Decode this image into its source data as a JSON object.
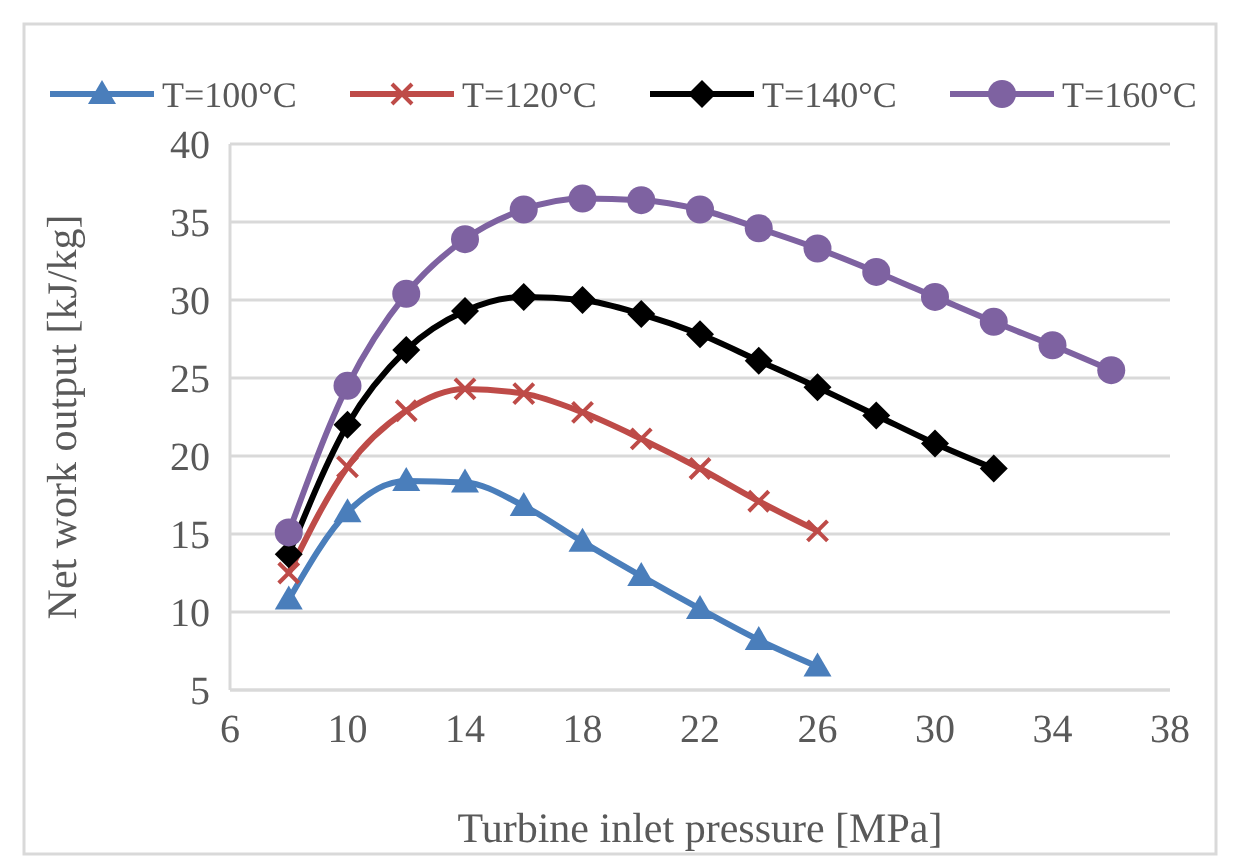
{
  "chart_data": {
    "type": "line",
    "xlabel": "Turbine inlet pressure [MPa]",
    "ylabel": "Net work output [kJ/kg]",
    "xlim": [
      6,
      38
    ],
    "xticks": [
      6,
      10,
      14,
      18,
      22,
      26,
      30,
      34,
      38
    ],
    "ylim": [
      5,
      40
    ],
    "yticks": [
      5,
      10,
      15,
      20,
      25,
      30,
      35,
      40
    ],
    "grid": "y",
    "legend": "top",
    "line_style": "solid",
    "series": [
      {
        "name": "T=100°C",
        "color": "#4a7ebb",
        "marker": "triangle",
        "x": [
          8,
          10,
          12,
          14,
          16,
          18,
          20,
          22,
          24,
          26
        ],
        "values": [
          10.8,
          16.4,
          18.4,
          18.3,
          16.8,
          14.5,
          12.3,
          10.2,
          8.2,
          6.5
        ]
      },
      {
        "name": "T=120°C",
        "color": "#be4b48",
        "marker": "cross",
        "x": [
          8,
          10,
          12,
          14,
          16,
          18,
          20,
          22,
          24,
          26
        ],
        "values": [
          12.5,
          19.3,
          22.9,
          24.3,
          24.0,
          22.8,
          21.1,
          19.2,
          17.1,
          15.2
        ]
      },
      {
        "name": "T=140°C",
        "color": "#000000",
        "marker": "diamond",
        "x": [
          8,
          10,
          12,
          14,
          16,
          18,
          20,
          22,
          24,
          26,
          28,
          30,
          32
        ],
        "values": [
          13.7,
          22.0,
          26.8,
          29.3,
          30.2,
          30.0,
          29.1,
          27.8,
          26.1,
          24.4,
          22.6,
          20.8,
          19.2
        ]
      },
      {
        "name": "T=160°C",
        "color": "#7e62a1",
        "marker": "circle",
        "x": [
          8,
          10,
          12,
          14,
          16,
          18,
          20,
          22,
          24,
          26,
          28,
          30,
          32,
          34,
          36
        ],
        "values": [
          15.1,
          24.5,
          30.4,
          33.9,
          35.8,
          36.5,
          36.4,
          35.8,
          34.6,
          33.3,
          31.8,
          30.2,
          28.6,
          27.1,
          25.5
        ]
      }
    ]
  }
}
